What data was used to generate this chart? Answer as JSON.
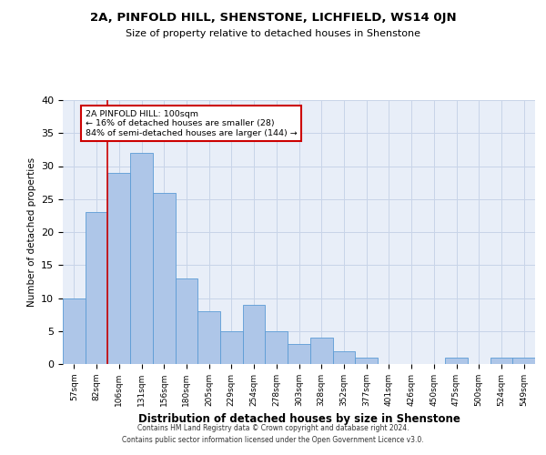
{
  "title": "2A, PINFOLD HILL, SHENSTONE, LICHFIELD, WS14 0JN",
  "subtitle": "Size of property relative to detached houses in Shenstone",
  "xlabel": "Distribution of detached houses by size in Shenstone",
  "ylabel": "Number of detached properties",
  "categories": [
    "57sqm",
    "82sqm",
    "106sqm",
    "131sqm",
    "156sqm",
    "180sqm",
    "205sqm",
    "229sqm",
    "254sqm",
    "278sqm",
    "303sqm",
    "328sqm",
    "352sqm",
    "377sqm",
    "401sqm",
    "426sqm",
    "450sqm",
    "475sqm",
    "500sqm",
    "524sqm",
    "549sqm"
  ],
  "values": [
    10,
    23,
    29,
    32,
    26,
    13,
    8,
    5,
    9,
    5,
    3,
    4,
    2,
    1,
    0,
    0,
    0,
    1,
    0,
    1,
    1
  ],
  "bar_color": "#aec6e8",
  "bar_edge_color": "#5b9bd5",
  "annotation_title": "2A PINFOLD HILL: 100sqm",
  "annotation_line1": "← 16% of detached houses are smaller (28)",
  "annotation_line2": "84% of semi-detached houses are larger (144) →",
  "annotation_box_color": "#ffffff",
  "annotation_box_edge": "#cc0000",
  "highlight_line_color": "#cc0000",
  "ylim": [
    0,
    40
  ],
  "yticks": [
    0,
    5,
    10,
    15,
    20,
    25,
    30,
    35,
    40
  ],
  "grid_color": "#c8d4e8",
  "background_color": "#e8eef8",
  "footer_line1": "Contains HM Land Registry data © Crown copyright and database right 2024.",
  "footer_line2": "Contains public sector information licensed under the Open Government Licence v3.0."
}
